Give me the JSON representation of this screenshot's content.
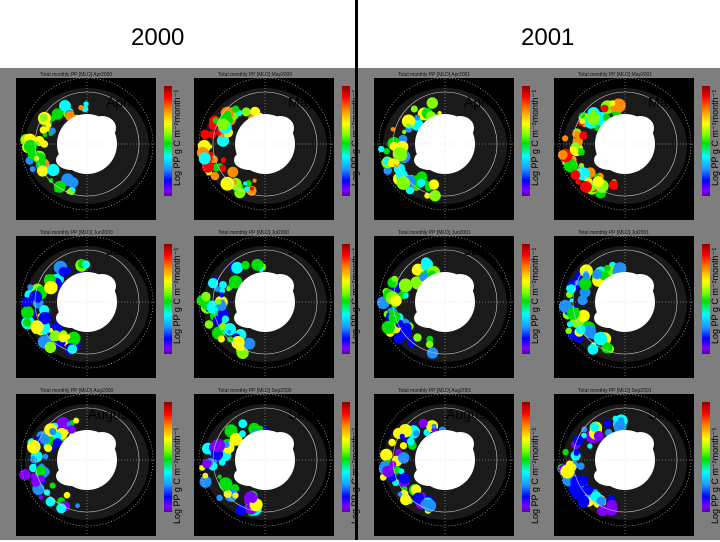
{
  "years": [
    {
      "label": "2000"
    },
    {
      "label": "2001"
    }
  ],
  "colorbar_label": "Log PP g C m⁻²month⁻¹",
  "panels": [
    {
      "month": "April",
      "title": "Total monthly PP [MLD] Apr2000"
    },
    {
      "month": "May",
      "title": "Total monthly PP [MLD] May2000"
    },
    {
      "month": "April",
      "title": "Total monthly PP [MLD] Apr2001"
    },
    {
      "month": "May",
      "title": "Total monthly PP [MLD] May2001"
    },
    {
      "month": "June",
      "title": "Total monthly PP [MLD] Jun2000"
    },
    {
      "month": "July",
      "title": "Total monthly PP [MLD] Jul2000"
    },
    {
      "month": "June",
      "title": "Total monthly PP [MLD] Jun2001"
    },
    {
      "month": "July",
      "title": "Total monthly PP [MLD] Jul2001"
    },
    {
      "month": "August",
      "title": "Total monthly PP [MLD] Aug2000"
    },
    {
      "month": "Sept",
      "title": "Total monthly PP [MLD] Sep2000"
    },
    {
      "month": "August",
      "title": "Total monthly PP [MLD] Aug2001"
    },
    {
      "month": "Sept",
      "title": "Total monthly PP [MLD] Sep2001"
    }
  ],
  "colors": {
    "panel_background": "#7e7e7e",
    "land": "#000000",
    "ice": "#ffffff",
    "divider": "#000000"
  }
}
